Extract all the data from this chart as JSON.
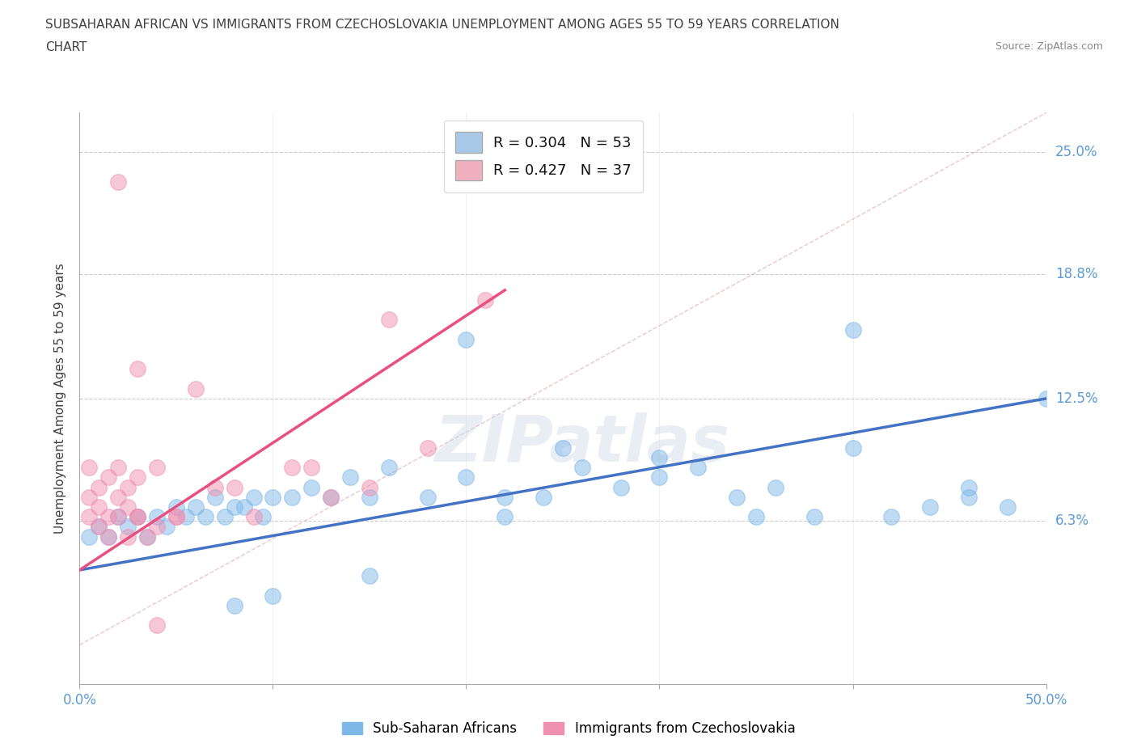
{
  "title_line1": "SUBSAHARAN AFRICAN VS IMMIGRANTS FROM CZECHOSLOVAKIA UNEMPLOYMENT AMONG AGES 55 TO 59 YEARS CORRELATION",
  "title_line2": "CHART",
  "source": "Source: ZipAtlas.com",
  "ylabel": "Unemployment Among Ages 55 to 59 years",
  "xlim": [
    0.0,
    0.5
  ],
  "ylim": [
    -0.02,
    0.27
  ],
  "ytick_vals": [
    0.063,
    0.125,
    0.188,
    0.25
  ],
  "ytick_labels": [
    "6.3%",
    "12.5%",
    "18.8%",
    "25.0%"
  ],
  "xtick_vals": [
    0.0,
    0.1,
    0.2,
    0.3,
    0.4,
    0.5
  ],
  "xtick_labels": [
    "0.0%",
    "",
    "",
    "",
    "",
    "50.0%"
  ],
  "legend_entries": [
    {
      "label": "R = 0.304   N = 53",
      "color": "#a8c8e8"
    },
    {
      "label": "R = 0.427   N = 37",
      "color": "#f0b0c0"
    }
  ],
  "legend_bottom": [
    "Sub-Saharan Africans",
    "Immigrants from Czechoslovakia"
  ],
  "blue_color": "#4472c4",
  "pink_color": "#e85080",
  "scatter_blue_color": "#7eb8e8",
  "scatter_pink_color": "#f090b0",
  "watermark": "ZIPatlas",
  "blue_scatter_x": [
    0.005,
    0.01,
    0.015,
    0.02,
    0.025,
    0.03,
    0.035,
    0.04,
    0.045,
    0.05,
    0.055,
    0.06,
    0.065,
    0.07,
    0.075,
    0.08,
    0.085,
    0.09,
    0.095,
    0.1,
    0.11,
    0.12,
    0.13,
    0.14,
    0.15,
    0.16,
    0.18,
    0.2,
    0.22,
    0.24,
    0.26,
    0.28,
    0.3,
    0.32,
    0.34,
    0.36,
    0.38,
    0.4,
    0.42,
    0.44,
    0.46,
    0.48,
    0.5,
    0.25,
    0.3,
    0.2,
    0.35,
    0.4,
    0.46,
    0.22,
    0.15,
    0.1,
    0.08
  ],
  "blue_scatter_y": [
    0.055,
    0.06,
    0.055,
    0.065,
    0.06,
    0.065,
    0.055,
    0.065,
    0.06,
    0.07,
    0.065,
    0.07,
    0.065,
    0.075,
    0.065,
    0.07,
    0.07,
    0.075,
    0.065,
    0.075,
    0.075,
    0.08,
    0.075,
    0.085,
    0.075,
    0.09,
    0.075,
    0.085,
    0.075,
    0.075,
    0.09,
    0.08,
    0.095,
    0.09,
    0.075,
    0.08,
    0.065,
    0.1,
    0.065,
    0.07,
    0.08,
    0.07,
    0.125,
    0.1,
    0.085,
    0.155,
    0.065,
    0.16,
    0.075,
    0.065,
    0.035,
    0.025,
    0.02
  ],
  "pink_scatter_x": [
    0.005,
    0.01,
    0.015,
    0.02,
    0.025,
    0.03,
    0.035,
    0.04,
    0.005,
    0.01,
    0.015,
    0.02,
    0.025,
    0.03,
    0.005,
    0.01,
    0.015,
    0.02,
    0.025,
    0.03,
    0.05,
    0.07,
    0.09,
    0.11,
    0.13,
    0.15,
    0.18,
    0.21,
    0.05,
    0.08,
    0.12,
    0.16,
    0.04,
    0.06,
    0.02,
    0.03,
    0.04
  ],
  "pink_scatter_y": [
    0.065,
    0.06,
    0.055,
    0.065,
    0.055,
    0.065,
    0.055,
    0.06,
    0.075,
    0.07,
    0.065,
    0.075,
    0.07,
    0.065,
    0.09,
    0.08,
    0.085,
    0.09,
    0.08,
    0.085,
    0.065,
    0.08,
    0.065,
    0.09,
    0.075,
    0.08,
    0.1,
    0.175,
    0.065,
    0.08,
    0.09,
    0.165,
    0.09,
    0.13,
    0.235,
    0.14,
    0.01
  ],
  "blue_trend_x": [
    0.0,
    0.5
  ],
  "blue_trend_y": [
    0.038,
    0.125
  ],
  "pink_trend_x": [
    0.0,
    0.22
  ],
  "pink_trend_y": [
    0.038,
    0.18
  ],
  "ref_line_x": [
    0.0,
    0.5
  ],
  "ref_line_y": [
    0.0,
    0.27
  ],
  "grid_color": "#cccccc",
  "background_color": "#ffffff",
  "title_color": "#404040",
  "axis_label_color": "#5b9bd5",
  "ylabel_color": "#404040"
}
